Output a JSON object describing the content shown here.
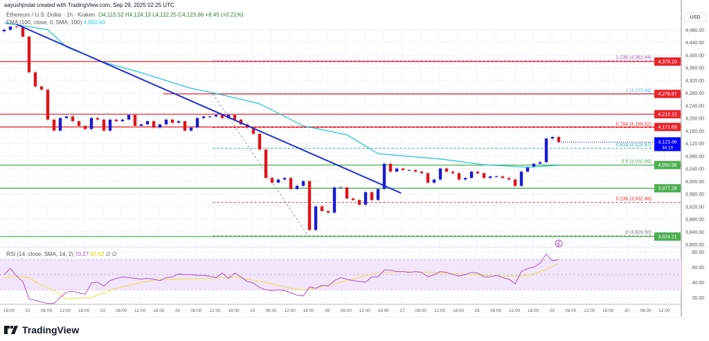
{
  "header": {
    "credit": "aayushjindal created with TradingView.com, Sep 29, 2025 02:25 UTC",
    "symbol": "Ethereum / U.S. Dollar · 1h · Kraken",
    "ohlc": "O4,115.52 H4,124.13 L4,112.25 C4,123.66 +8.45 (+0.21%)",
    "ema_label": "EMA (100, close, 0, SMA, 100)",
    "ema_value": "4,050.60",
    "rsi_label": "RSI (14, close, SMA, 14, 2)",
    "rsi_value": "70.27",
    "rsi_ma_value": "65.62",
    "rsi_extra": "∅ ∅",
    "currency": "USD",
    "brand": "TradingView"
  },
  "colors": {
    "up": "#1a1ad6",
    "down": "#e0141a",
    "ema": "#26c6da",
    "trend": "#1f2fe0",
    "resistance": "#e8262c",
    "support": "#4caf50",
    "rsi": "#b04fc9",
    "rsi_ma": "#f2e03a",
    "last_price": "#0000ff"
  },
  "chart_data": {
    "type": "candlestick",
    "ylim": [
      3780,
      4510
    ],
    "y_ticks": [
      "4,480.00",
      "4,440.00",
      "4,400.00",
      "4,360.00",
      "4,320.00",
      "4,280.00",
      "4,240.00",
      "4,200.00",
      "4,160.00",
      "4,120.00",
      "4,080.00",
      "4,040.00",
      "4,000.00",
      "3,960.00",
      "3,920.00",
      "3,880.00",
      "3,840.00",
      "3,800.00"
    ],
    "x_ticks": [
      "18:00",
      "22",
      "06:00",
      "12:00",
      "18:00",
      "23",
      "06:00",
      "12:00",
      "18:00",
      "24",
      "06:00",
      "12:00",
      "18:00",
      "25",
      "06:00",
      "12:00",
      "18:00",
      "26",
      "06:00",
      "12:00",
      "18:00",
      "27",
      "06:00",
      "12:00",
      "18:00",
      "28",
      "06:00",
      "12:00",
      "18:00",
      "29",
      "06:00",
      "12:00",
      "18:00",
      "30",
      "06:00",
      "12:00"
    ],
    "closes": [
      4480,
      4490,
      4488,
      4458,
      4345,
      4300,
      4290,
      4195,
      4160,
      4200,
      4205,
      4190,
      4175,
      4165,
      4200,
      4195,
      4160,
      4195,
      4190,
      4195,
      4210,
      4175,
      4180,
      4190,
      4170,
      4180,
      4195,
      4185,
      4190,
      4160,
      4170,
      4200,
      4205,
      4205,
      4210,
      4200,
      4210,
      4195,
      4180,
      4170,
      4150,
      4100,
      4010,
      3995,
      4005,
      4010,
      3975,
      3985,
      4000,
      3845,
      3920,
      3905,
      3900,
      3980,
      3980,
      3945,
      3940,
      3925,
      3965,
      3940,
      3975,
      4055,
      4030,
      4040,
      4035,
      4035,
      4030,
      4025,
      3995,
      4005,
      4040,
      4030,
      4025,
      4005,
      4010,
      4030,
      4025,
      4010,
      4015,
      4015,
      4010,
      4005,
      3985,
      4030,
      4045,
      4055,
      4060,
      4135,
      4140,
      4124
    ],
    "first_open": 4475,
    "ema": [
      [
        0,
        4502
      ],
      [
        7,
        4480
      ],
      [
        10,
        4425
      ],
      [
        16,
        4377
      ],
      [
        22,
        4344
      ],
      [
        30,
        4294
      ],
      [
        34,
        4278
      ],
      [
        41,
        4245
      ],
      [
        48,
        4175
      ],
      [
        55,
        4147
      ],
      [
        60,
        4087
      ],
      [
        70,
        4070
      ],
      [
        77,
        4052
      ],
      [
        84,
        4044
      ],
      [
        89,
        4050
      ]
    ],
    "trendline": [
      [
        2,
        4497
      ],
      [
        63.7,
        3962
      ]
    ],
    "levels": [
      {
        "price": 4379.1,
        "label": "4,379.10",
        "kind": "resistance"
      },
      {
        "price": 4276.57,
        "label": "4,276.57",
        "kind": "resistance",
        "from": 25.5
      },
      {
        "price": 4212.12,
        "label": "4,212.12",
        "kind": "resistance"
      },
      {
        "price": 4171.69,
        "label": "4,171.69",
        "kind": "resistance"
      },
      {
        "price": 4050.9,
        "label": "4,050.90",
        "kind": "support"
      },
      {
        "price": 3977.28,
        "label": "3,977.28",
        "kind": "support"
      },
      {
        "price": 3824.21,
        "label": "3,824.21",
        "kind": "support"
      }
    ],
    "last_price": {
      "price": 4123.66,
      "label": "4,123.66",
      "countdown": "34:19"
    },
    "fib": {
      "from": 33.5,
      "anchor_high": [
        33.5,
        4276
      ],
      "anchor_low": [
        48.8,
        3826.5
      ],
      "levels": [
        {
          "ratio": "1.236",
          "price": 4381.44,
          "text": "1.236 (4,381.44)",
          "color": "#b04fc9"
        },
        {
          "ratio": "1",
          "price": 4275.48,
          "text": "1 (4,275.48)",
          "color": "#64b5f6"
        },
        {
          "ratio": "0.764",
          "price": 4169.52,
          "text": "0.764 (4,169.52)",
          "color": "#e8262c"
        },
        {
          "ratio": "0.618",
          "price": 4103.97,
          "text": "0.618 (4,103.97)",
          "color": "#26a69a"
        },
        {
          "ratio": "0.5",
          "price": 4050.99,
          "text": "0.5 (4,050.99)",
          "color": "#4caf50"
        },
        {
          "ratio": "0.236",
          "price": 3932.46,
          "text": "0.236 (3,932.46)",
          "color": "#e8262c"
        },
        {
          "ratio": "0",
          "price": 3826.5,
          "text": "0 (3,826.50)",
          "color": "#787b86"
        }
      ]
    },
    "rsi": {
      "ylim": [
        10,
        85
      ],
      "y_ticks": [
        "80.00",
        "60.00",
        "40.00",
        "20.00"
      ],
      "band": [
        30,
        70
      ],
      "values": [
        50,
        58,
        48,
        41,
        18,
        16,
        14,
        12,
        12,
        20,
        27,
        28,
        26,
        24,
        39,
        40,
        35,
        42,
        45,
        47,
        46,
        45,
        44,
        45,
        44,
        42,
        46,
        47,
        51,
        50,
        50,
        49,
        49,
        48,
        46,
        52,
        45,
        52,
        47,
        41,
        39,
        33,
        30,
        29,
        30,
        29,
        26,
        23,
        22,
        34,
        32,
        36,
        35,
        42,
        46,
        44,
        42,
        41,
        40,
        47,
        47,
        56,
        56,
        54,
        54,
        53,
        54,
        53,
        47,
        50,
        54,
        53,
        50,
        48,
        50,
        53,
        52,
        47,
        47,
        49,
        46,
        44,
        38,
        54,
        58,
        60,
        65,
        77,
        68,
        70
      ],
      "ma": [
        [
          0,
          46
        ],
        [
          2,
          48
        ],
        [
          4,
          46
        ],
        [
          6,
          36
        ],
        [
          8,
          29
        ],
        [
          10,
          18
        ],
        [
          14,
          20
        ],
        [
          16,
          26
        ],
        [
          18,
          32
        ],
        [
          22,
          40
        ],
        [
          25,
          44
        ],
        [
          28,
          44
        ],
        [
          32,
          45
        ],
        [
          35,
          46
        ],
        [
          37,
          47
        ],
        [
          39,
          44
        ],
        [
          43,
          38
        ],
        [
          46,
          32
        ],
        [
          48,
          30
        ],
        [
          50,
          32
        ],
        [
          52,
          36
        ],
        [
          56,
          44
        ],
        [
          60,
          53
        ],
        [
          64,
          54
        ],
        [
          68,
          53
        ],
        [
          75,
          50
        ],
        [
          81,
          48
        ],
        [
          83,
          48
        ],
        [
          85,
          51
        ],
        [
          87,
          57
        ],
        [
          89,
          65
        ]
      ]
    }
  }
}
